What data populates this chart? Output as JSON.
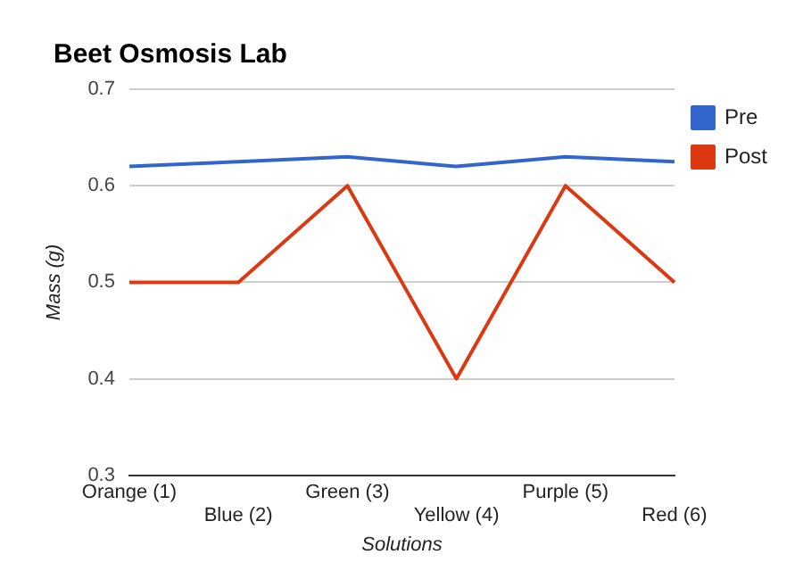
{
  "chart_data": {
    "type": "line",
    "title": "Beet Osmosis Lab",
    "xlabel": "Solutions",
    "ylabel": "Mass (g)",
    "categories": [
      "Orange (1)",
      "Blue (2)",
      "Green (3)",
      "Yellow (4)",
      "Purple (5)",
      "Red (6)"
    ],
    "series": [
      {
        "name": "Pre",
        "color": "#3366cc",
        "values": [
          0.62,
          0.625,
          0.63,
          0.62,
          0.63,
          0.625
        ]
      },
      {
        "name": "Post",
        "color": "#dc3912",
        "values": [
          0.5,
          0.5,
          0.6,
          0.4,
          0.6,
          0.5
        ]
      }
    ],
    "ylim": [
      0.3,
      0.7
    ],
    "yticks": [
      0.3,
      0.4,
      0.5,
      0.6,
      0.7
    ],
    "grid": "y",
    "legend": "right",
    "marker": "none",
    "line_style": "solid"
  }
}
